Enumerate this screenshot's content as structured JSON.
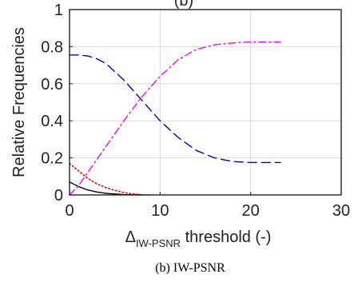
{
  "chart_data": {
    "type": "line",
    "title_fragment": "(b)",
    "ylabel": "Relative Frequencies",
    "xlabel_main": "Δ",
    "xlabel_sub": "IW-PSNR",
    "xlabel_suffix": " threshold (-)",
    "caption": "(b) IW-PSNR",
    "xlim": [
      0,
      30
    ],
    "ylim": [
      0,
      1
    ],
    "xticks": [
      0,
      10,
      20,
      30
    ],
    "yticks": [
      0,
      0.2,
      0.4,
      0.6,
      0.8,
      1
    ],
    "xtick_labels": [
      "0",
      "10",
      "20",
      "30"
    ],
    "ytick_labels": [
      "0",
      "0.2",
      "0.4",
      "0.6",
      "0.8",
      "1"
    ],
    "grid": true,
    "series": [
      {
        "color": "#000000",
        "style": "solid",
        "x": [
          0,
          1,
          2,
          3,
          4,
          5,
          6,
          7,
          8
        ],
        "y": [
          0.07,
          0.045,
          0.027,
          0.016,
          0.009,
          0.005,
          0.002,
          0.001,
          0.0
        ]
      },
      {
        "color": "#ff0000",
        "style": "dotted",
        "x": [
          0,
          1,
          2,
          3,
          4,
          5,
          6,
          7,
          8,
          9
        ],
        "y": [
          0.17,
          0.13,
          0.09,
          0.06,
          0.04,
          0.025,
          0.013,
          0.005,
          0.001,
          0.0
        ]
      },
      {
        "color": "#0000cc",
        "style": "dashed",
        "x": [
          0,
          1,
          2,
          3,
          4,
          6,
          8,
          10,
          12,
          14,
          16,
          18,
          20,
          22,
          23.3
        ],
        "y": [
          0.755,
          0.755,
          0.75,
          0.735,
          0.71,
          0.62,
          0.51,
          0.4,
          0.31,
          0.24,
          0.2,
          0.18,
          0.175,
          0.175,
          0.175
        ]
      },
      {
        "color": "#ff00ff",
        "style": "dashdot",
        "x": [
          0,
          1,
          2,
          4,
          6,
          8,
          10,
          12,
          14,
          16,
          18,
          20,
          22,
          23.3
        ],
        "y": [
          0.0,
          0.05,
          0.12,
          0.26,
          0.4,
          0.53,
          0.64,
          0.73,
          0.785,
          0.81,
          0.82,
          0.825,
          0.825,
          0.825
        ]
      }
    ]
  }
}
